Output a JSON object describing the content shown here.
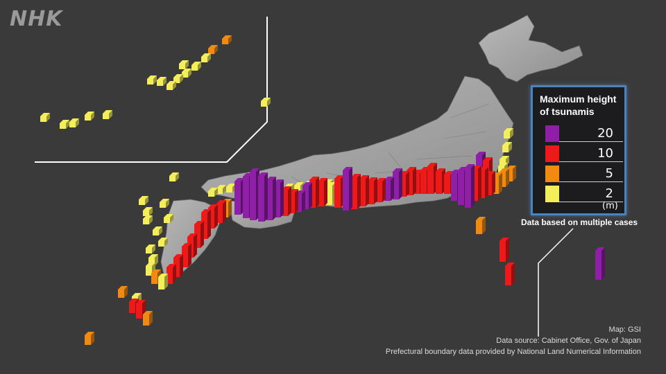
{
  "logo": "NHK",
  "legend": {
    "title": "Maximum height\nof tsunamis",
    "items": [
      {
        "value": "20",
        "color": "#8e1fa6"
      },
      {
        "value": "10",
        "color": "#ee1a1a"
      },
      {
        "value": "5",
        "color": "#f08a10"
      },
      {
        "value": "2",
        "color": "#f4ee5a"
      }
    ],
    "unit": "(m)",
    "note": "Data based on multiple cases"
  },
  "credits": {
    "map": "Map: GSI",
    "source": "Data source: Cabinet Office, Gov. of Japan",
    "boundary": "Prefectural boundary data provided by National Land Numerical Information"
  }
}
